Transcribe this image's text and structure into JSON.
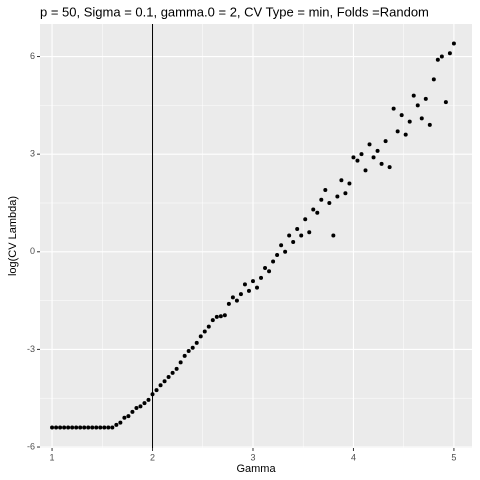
{
  "chart_data": {
    "type": "scatter",
    "title": "p = 50, Sigma = 0.1, gamma.0 = 2, CV Type = min, Folds =Random",
    "x_label": "Gamma",
    "y_label": "log(CV Lambda)",
    "xlim": [
      0.88,
      5.18
    ],
    "ylim": [
      -6.03,
      7.0
    ],
    "xticks": [
      1,
      2,
      3,
      4,
      5
    ],
    "yticks": [
      -6,
      -3,
      0,
      3,
      6
    ],
    "grid": true,
    "color": "#000000",
    "vline": 2,
    "x": [
      1.0,
      1.04,
      1.08,
      1.12,
      1.16,
      1.2,
      1.24,
      1.28,
      1.32,
      1.36,
      1.4,
      1.44,
      1.48,
      1.52,
      1.56,
      1.6,
      1.64,
      1.68,
      1.72,
      1.76,
      1.8,
      1.84,
      1.88,
      1.92,
      1.96,
      2.0,
      2.04,
      2.08,
      2.12,
      2.16,
      2.2,
      2.24,
      2.28,
      2.32,
      2.36,
      2.4,
      2.44,
      2.48,
      2.52,
      2.56,
      2.6,
      2.64,
      2.68,
      2.72,
      2.76,
      2.8,
      2.84,
      2.88,
      2.92,
      2.96,
      3.0,
      3.04,
      3.08,
      3.12,
      3.16,
      3.2,
      3.24,
      3.28,
      3.32,
      3.36,
      3.4,
      3.44,
      3.48,
      3.52,
      3.56,
      3.6,
      3.64,
      3.68,
      3.72,
      3.76,
      3.8,
      3.84,
      3.88,
      3.92,
      3.96,
      4.0,
      4.04,
      4.08,
      4.12,
      4.16,
      4.2,
      4.24,
      4.28,
      4.32,
      4.36,
      4.4,
      4.44,
      4.48,
      4.52,
      4.56,
      4.6,
      4.64,
      4.68,
      4.72,
      4.76,
      4.8,
      4.84,
      4.88,
      4.92,
      4.96,
      5.0
    ],
    "values": [
      -5.4,
      -5.4,
      -5.4,
      -5.4,
      -5.4,
      -5.4,
      -5.4,
      -5.4,
      -5.4,
      -5.4,
      -5.4,
      -5.4,
      -5.4,
      -5.4,
      -5.4,
      -5.4,
      -5.32,
      -5.25,
      -5.1,
      -5.05,
      -4.92,
      -4.8,
      -4.75,
      -4.65,
      -4.55,
      -4.38,
      -4.25,
      -4.1,
      -3.98,
      -3.85,
      -3.72,
      -3.6,
      -3.4,
      -3.2,
      -3.05,
      -2.95,
      -2.8,
      -2.6,
      -2.45,
      -2.3,
      -2.1,
      -2.0,
      -1.98,
      -1.95,
      -1.6,
      -1.4,
      -1.5,
      -1.3,
      -1.0,
      -1.2,
      -0.9,
      -1.1,
      -0.8,
      -0.5,
      -0.6,
      -0.3,
      -0.1,
      0.2,
      0.0,
      0.5,
      0.3,
      0.7,
      0.5,
      1.0,
      0.6,
      1.3,
      1.2,
      1.6,
      1.9,
      1.5,
      0.5,
      1.7,
      2.2,
      1.8,
      2.1,
      2.9,
      2.8,
      3.0,
      2.5,
      3.3,
      2.9,
      3.1,
      2.7,
      3.4,
      2.6,
      4.4,
      3.7,
      4.2,
      3.6,
      4.0,
      4.8,
      4.5,
      4.1,
      4.7,
      3.9,
      5.3,
      5.9,
      6.0,
      4.6,
      6.1,
      6.4
    ]
  }
}
